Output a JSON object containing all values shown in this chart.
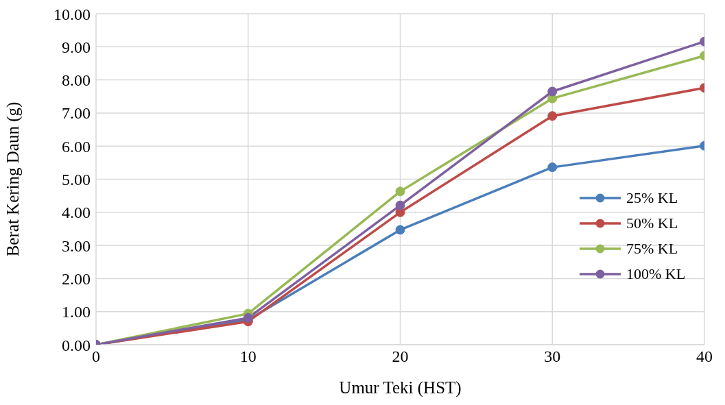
{
  "chart_data": {
    "type": "line",
    "xlabel": "Umur Teki (HST)",
    "ylabel": "Berat Kering Daun (g)",
    "x": [
      0,
      10,
      20,
      30,
      40
    ],
    "series": [
      {
        "name": "25% KL",
        "color": "#4a7ebb",
        "values": [
          0,
          0.75,
          3.47,
          5.36,
          6.01
        ]
      },
      {
        "name": "50% KL",
        "color": "#be4b48",
        "values": [
          0,
          0.7,
          4.0,
          6.91,
          7.76
        ]
      },
      {
        "name": "75% KL",
        "color": "#98b954",
        "values": [
          0,
          0.94,
          4.63,
          7.44,
          8.73
        ]
      },
      {
        "name": "100% KL",
        "color": "#7d60a0",
        "values": [
          0,
          0.81,
          4.21,
          7.65,
          9.16
        ]
      }
    ],
    "xlim": [
      0,
      40
    ],
    "xticks": [
      0,
      10,
      20,
      30,
      40
    ],
    "ylim": [
      0,
      10
    ],
    "yticks": [
      {
        "value": 0,
        "label": "0.00"
      },
      {
        "value": 1,
        "label": "1.00"
      },
      {
        "value": 2,
        "label": "2.00"
      },
      {
        "value": 3,
        "label": "3.00"
      },
      {
        "value": 4,
        "label": "4.00"
      },
      {
        "value": 5,
        "label": "5.00"
      },
      {
        "value": 6,
        "label": "6.00"
      },
      {
        "value": 7,
        "label": "7.00"
      },
      {
        "value": 8,
        "label": "8.00"
      },
      {
        "value": 9,
        "label": "9.00"
      },
      {
        "value": 10,
        "label": "10.00"
      }
    ],
    "grid": true,
    "legend": "right",
    "marker": "circle",
    "line_style": "solid"
  }
}
